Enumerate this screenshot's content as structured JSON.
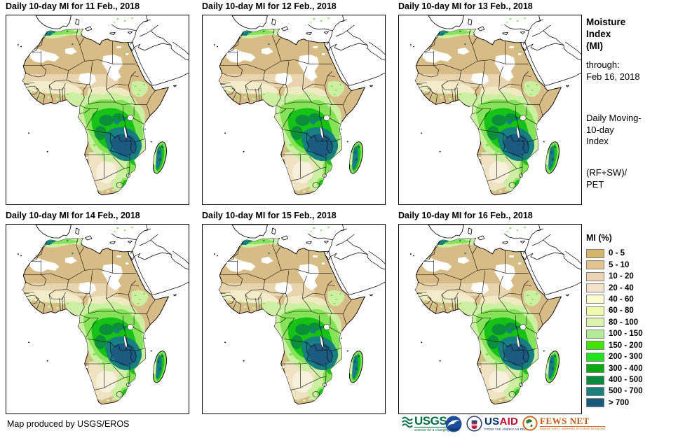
{
  "panels": [
    {
      "title": "Daily 10-day MI for 11 Feb., 2018"
    },
    {
      "title": "Daily 10-day MI for 12 Feb., 2018"
    },
    {
      "title": "Daily 10-day MI for 13 Feb., 2018"
    },
    {
      "title": "Daily 10-day MI for 14 Feb., 2018"
    },
    {
      "title": "Daily 10-day MI for 15 Feb., 2018"
    },
    {
      "title": "Daily 10-day MI for 16 Feb., 2018"
    }
  ],
  "sidebar": {
    "title": "Moisture\nIndex\n(MI)",
    "through": "through:\nFeb 16, 2018",
    "moving": "Daily Moving-\n10-day\nIndex",
    "formula": "(RF+SW)/\nPET"
  },
  "legend": {
    "title": "MI (%)",
    "items": [
      {
        "label": "0 - 5",
        "color": "#D3B66B"
      },
      {
        "label": "5 - 10",
        "color": "#E2C38D"
      },
      {
        "label": "10 - 20",
        "color": "#EAD4B3"
      },
      {
        "label": "20 - 40",
        "color": "#F3E2C9"
      },
      {
        "label": "40 - 60",
        "color": "#FBFBD0"
      },
      {
        "label": "60 - 80",
        "color": "#EFF9AC"
      },
      {
        "label": "80 - 100",
        "color": "#DBF4AD"
      },
      {
        "label": "100 - 150",
        "color": "#B3EB98"
      },
      {
        "label": "150 - 200",
        "color": "#43E400"
      },
      {
        "label": "200 - 300",
        "color": "#1EE41E"
      },
      {
        "label": "300 - 400",
        "color": "#0BA80B"
      },
      {
        "label": "400 - 500",
        "color": "#098A3D"
      },
      {
        "label": "500 - 700",
        "color": "#19807F"
      },
      {
        "label": "> 700",
        "color": "#1A597D"
      }
    ]
  },
  "footer": {
    "credit": "Map produced by USGS/EROS",
    "logos": {
      "usgs": {
        "name": "USGS",
        "tagline": "science for a changing world"
      },
      "noaa": {
        "name": "NOAA"
      },
      "usaid": {
        "name_blue": "US",
        "name_red": "AID",
        "tagline": "FROM THE AMERICAN PEOPLE"
      },
      "fewsnet": {
        "name": "FEWS NET",
        "tagline": "FAMINE EARLY WARNING SYSTEMS NETWORK"
      }
    }
  }
}
